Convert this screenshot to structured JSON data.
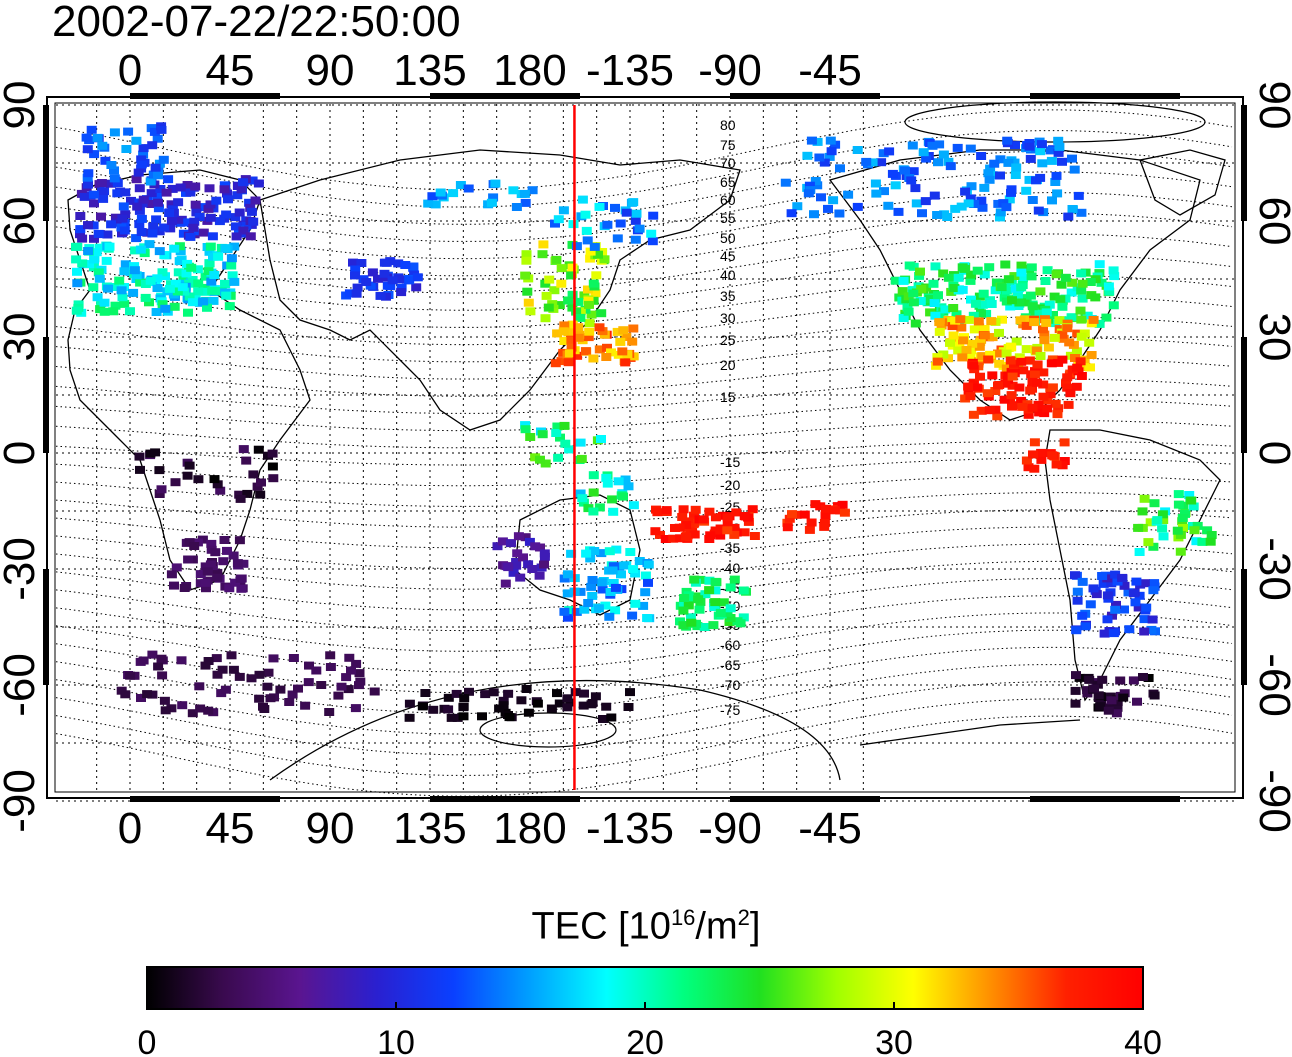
{
  "timestamp": "2002-07-22/22:50:00",
  "axes": {
    "lon_ticks": [
      "0",
      "45",
      "90",
      "135",
      "180",
      "-135",
      "-90",
      "-45"
    ],
    "lat_ticks": [
      "90",
      "60",
      "30",
      "0",
      "-30",
      "-60",
      "-90"
    ]
  },
  "mag_lat_labels": [
    "80",
    "75",
    "70",
    "65",
    "60",
    "55",
    "50",
    "45",
    "40",
    "35",
    "30",
    "25",
    "20",
    "15",
    "-15",
    "-20",
    "-25",
    "-30",
    "-35",
    "-40",
    "-45",
    "-50",
    "-55",
    "-60",
    "-65",
    "-70",
    "-75"
  ],
  "colorbar": {
    "title_prefix": "TEC  [10",
    "title_sup1": "16",
    "title_mid": "/m",
    "title_sup2": "2",
    "title_suffix": "]",
    "min": 0,
    "max": 40,
    "ticks": [
      "0",
      "10",
      "20",
      "30",
      "40"
    ],
    "colormap": [
      "#000000",
      "#3a0a4f",
      "#5a1590",
      "#2a20d0",
      "#0a40ff",
      "#00a0ff",
      "#00ffff",
      "#00ff80",
      "#20e020",
      "#a0ff00",
      "#ffff00",
      "#ff9000",
      "#ff2000",
      "#ff0000"
    ]
  },
  "terminator_longitude": -160,
  "colors": {
    "terminator": "#ff0000",
    "grid": "#000000"
  }
}
